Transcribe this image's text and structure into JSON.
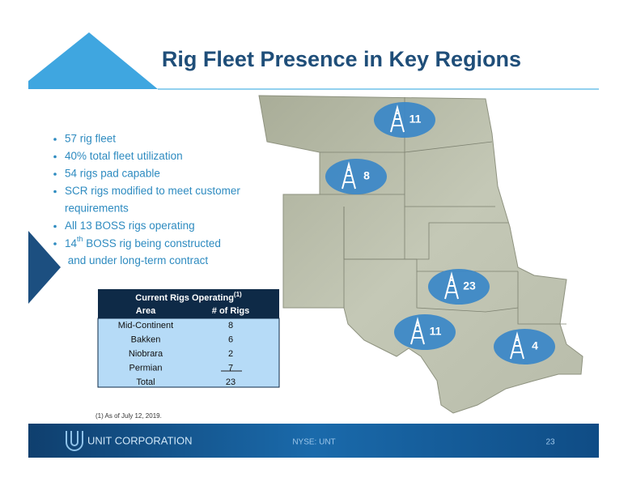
{
  "title": "Rig Fleet Presence in Key Regions",
  "bullets": [
    [
      "57 rig fleet"
    ],
    [
      "40% total fleet utilization"
    ],
    [
      "54 rigs pad capable"
    ],
    [
      "SCR rigs modified to meet customer",
      "requirements"
    ],
    [
      "All 13 BOSS rigs operating"
    ],
    [
      {
        "main": "14",
        "sup": "th",
        "rest": " BOSS rig being constructed"
      },
      " and under long-term contract"
    ]
  ],
  "table": {
    "title": "Current Rigs Operating",
    "title_note": "(1)",
    "header": [
      "Area",
      "# of Rigs"
    ],
    "rows": [
      [
        "Mid-Continent",
        "8"
      ],
      [
        "Bakken",
        "6"
      ],
      [
        "Niobrara",
        "2"
      ],
      [
        "Permian",
        "7"
      ]
    ],
    "total": [
      "Total",
      "23"
    ]
  },
  "map_markers": [
    "11",
    "8",
    "23",
    "11",
    "4"
  ],
  "footnote": "(1)   As of July 12, 2019.",
  "footer": {
    "company": "UNIT CORPORATION",
    "ticker": "NYSE: UNT",
    "page": "23"
  }
}
